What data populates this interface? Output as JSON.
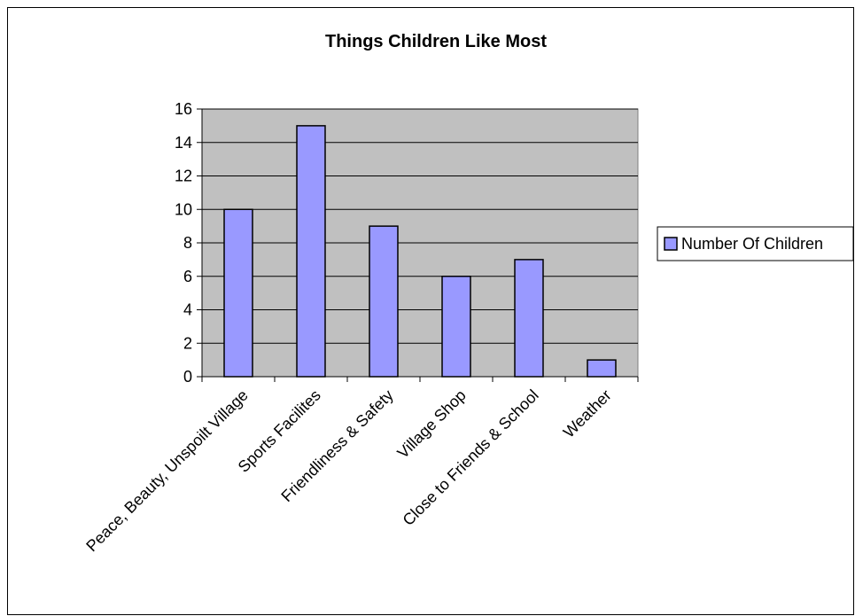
{
  "chart_data": {
    "type": "bar",
    "title": "Things Children Like Most",
    "xlabel": "",
    "ylabel": "",
    "categories": [
      "Peace, Beauty, Unspoilt Village",
      "Sports Facilites",
      "Friendliness & Safety",
      "Village Shop",
      "Close to Friends & School",
      "Weather"
    ],
    "series": [
      {
        "name": "Number Of Children",
        "values": [
          10,
          15,
          9,
          6,
          7,
          1
        ],
        "color": "#9999FF"
      }
    ],
    "ylim": [
      0,
      16
    ],
    "yticks": [
      0,
      2,
      4,
      6,
      8,
      10,
      12,
      14,
      16
    ],
    "grid": true,
    "plot_background": "#C0C0C0",
    "legend_position": "right"
  }
}
